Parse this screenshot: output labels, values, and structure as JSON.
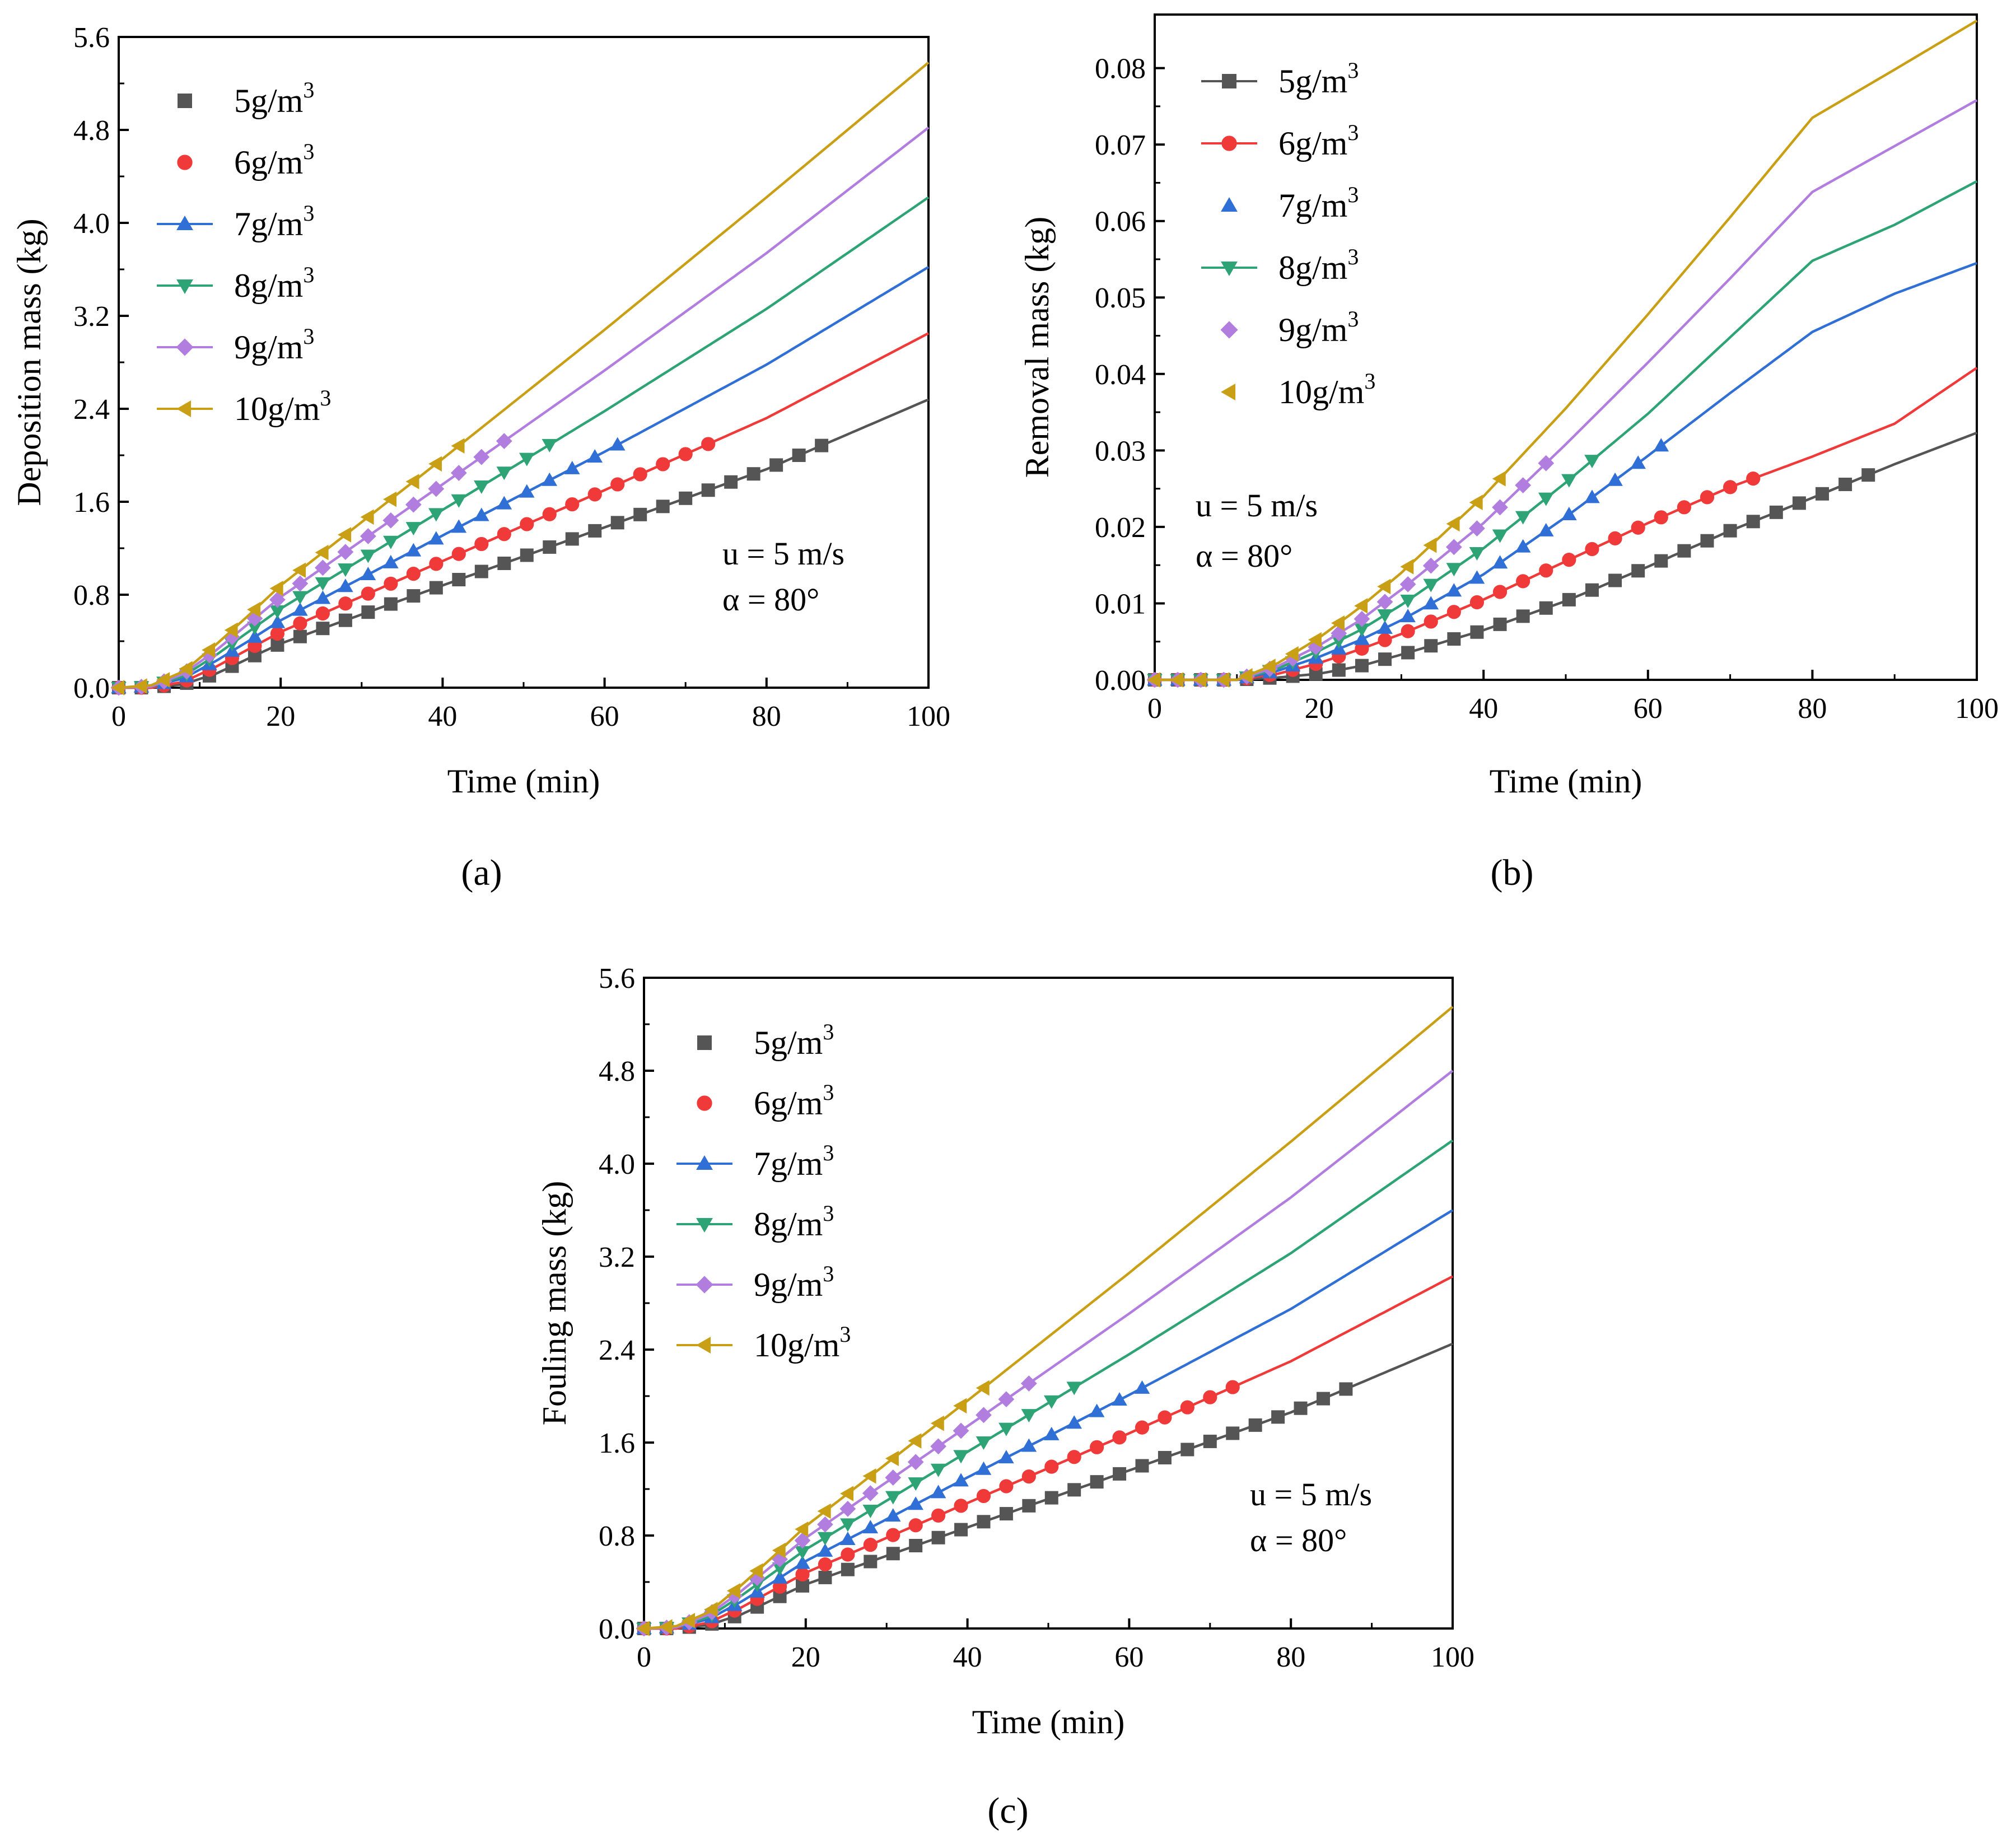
{
  "figure": {
    "annotation_velocity": "u = 5 m/s",
    "annotation_angle": "α = 80°"
  },
  "colors": [
    "#555555",
    "#f03a3a",
    "#2f6fd6",
    "#2ea476",
    "#b17ee0",
    "#c9a015"
  ],
  "markers": [
    "square",
    "circle",
    "triangle-up",
    "triangle-down",
    "diamond",
    "triangle-left"
  ],
  "chart_data": [
    {
      "id": "a",
      "caption": "(a)",
      "type": "line",
      "xlabel": "Time (min)",
      "ylabel": "Deposition mass (kg)",
      "xlim": [
        0,
        100
      ],
      "ylim": [
        0,
        5.6
      ],
      "xticks": [
        0,
        20,
        40,
        60,
        80,
        100
      ],
      "xtick_labels": [
        "0",
        "20",
        "40",
        "60",
        "80",
        "100"
      ],
      "yticks": [
        0,
        0.8,
        1.6,
        2.4,
        3.2,
        4.0,
        4.8,
        5.6
      ],
      "ytick_labels": [
        "0.0",
        "0.8",
        "1.6",
        "2.4",
        "3.2",
        "4.0",
        "4.8",
        "5.6"
      ],
      "legend_placement": "top-left",
      "series": [
        {
          "name": "5g/m",
          "sup": "3",
          "line_points": [
            [
              0,
              0
            ],
            [
              4,
              0
            ],
            [
              8,
              0.03
            ],
            [
              12,
              0.12
            ],
            [
              16,
              0.25
            ],
            [
              20,
              0.38
            ],
            [
              40,
              0.88
            ],
            [
              60,
              1.38
            ],
            [
              80,
              1.88
            ],
            [
              100,
              2.48
            ]
          ],
          "marker_x_end": 87,
          "legend_line": false
        },
        {
          "name": "6g/m",
          "sup": "3",
          "line_points": [
            [
              0,
              0
            ],
            [
              4,
              0
            ],
            [
              8,
              0.05
            ],
            [
              12,
              0.18
            ],
            [
              16,
              0.33
            ],
            [
              20,
              0.48
            ],
            [
              40,
              1.09
            ],
            [
              60,
              1.7
            ],
            [
              80,
              2.32
            ],
            [
              100,
              3.05
            ]
          ],
          "marker_x_end": 73,
          "legend_line": false
        },
        {
          "name": "7g/m",
          "sup": "3",
          "line_points": [
            [
              0,
              0
            ],
            [
              4,
              0.01
            ],
            [
              8,
              0.08
            ],
            [
              12,
              0.23
            ],
            [
              16,
              0.4
            ],
            [
              20,
              0.58
            ],
            [
              40,
              1.31
            ],
            [
              60,
              2.03
            ],
            [
              80,
              2.78
            ],
            [
              100,
              3.62
            ]
          ],
          "marker_x_end": 62,
          "legend_line": true
        },
        {
          "name": "8g/m",
          "sup": "3",
          "line_points": [
            [
              0,
              0
            ],
            [
              4,
              0.01
            ],
            [
              8,
              0.1
            ],
            [
              12,
              0.28
            ],
            [
              16,
              0.48
            ],
            [
              20,
              0.68
            ],
            [
              40,
              1.53
            ],
            [
              60,
              2.38
            ],
            [
              80,
              3.26
            ],
            [
              100,
              4.22
            ]
          ],
          "marker_x_end": 54,
          "legend_line": true
        },
        {
          "name": "9g/m",
          "sup": "3",
          "line_points": [
            [
              0,
              0
            ],
            [
              4,
              0.01
            ],
            [
              8,
              0.12
            ],
            [
              12,
              0.32
            ],
            [
              16,
              0.55
            ],
            [
              20,
              0.78
            ],
            [
              40,
              1.75
            ],
            [
              60,
              2.73
            ],
            [
              80,
              3.74
            ],
            [
              100,
              4.82
            ]
          ],
          "marker_x_end": 48,
          "legend_line": true
        },
        {
          "name": "10g/m",
          "sup": "3",
          "line_points": [
            [
              0,
              0
            ],
            [
              4,
              0.02
            ],
            [
              8,
              0.14
            ],
            [
              12,
              0.37
            ],
            [
              16,
              0.62
            ],
            [
              20,
              0.88
            ],
            [
              40,
              1.97
            ],
            [
              60,
              3.08
            ],
            [
              80,
              4.22
            ],
            [
              100,
              5.38
            ]
          ],
          "marker_x_end": 43,
          "legend_line": true
        }
      ]
    },
    {
      "id": "b",
      "caption": "(b)",
      "type": "line",
      "xlabel": "Time (min)",
      "ylabel": "Removal mass (kg)",
      "xlim": [
        0,
        100
      ],
      "ylim": [
        0,
        0.087
      ],
      "xticks": [
        0,
        20,
        40,
        60,
        80,
        100
      ],
      "xtick_labels": [
        "0",
        "20",
        "40",
        "60",
        "80",
        "100"
      ],
      "yticks": [
        0,
        0.01,
        0.02,
        0.03,
        0.04,
        0.05,
        0.06,
        0.07,
        0.08
      ],
      "ytick_labels": [
        "0.00",
        "0.01",
        "0.02",
        "0.03",
        "0.04",
        "0.05",
        "0.06",
        "0.07",
        "0.08"
      ],
      "legend_placement": "top-left",
      "series": [
        {
          "name": "5g/m",
          "sup": "3",
          "line_points": [
            [
              0,
              0
            ],
            [
              10,
              0
            ],
            [
              15,
              0.0003
            ],
            [
              20,
              0.0008
            ],
            [
              25,
              0.0018
            ],
            [
              30,
              0.0033
            ],
            [
              40,
              0.0065
            ],
            [
              50,
              0.0103
            ],
            [
              60,
              0.0148
            ],
            [
              70,
              0.0195
            ],
            [
              80,
              0.0238
            ],
            [
              90,
              0.0282
            ],
            [
              100,
              0.0323
            ]
          ],
          "marker_x_end": 87,
          "legend_line": true
        },
        {
          "name": "6g/m",
          "sup": "3",
          "line_points": [
            [
              0,
              0
            ],
            [
              10,
              0
            ],
            [
              15,
              0.0008
            ],
            [
              20,
              0.0022
            ],
            [
              25,
              0.004
            ],
            [
              30,
              0.006
            ],
            [
              40,
              0.0105
            ],
            [
              50,
              0.0155
            ],
            [
              60,
              0.0205
            ],
            [
              70,
              0.0252
            ],
            [
              80,
              0.0292
            ],
            [
              90,
              0.0335
            ],
            [
              100,
              0.0408
            ]
          ],
          "marker_x_end": 73,
          "legend_line": true
        },
        {
          "name": "7g/m",
          "sup": "3",
          "line_points": [
            [
              0,
              0
            ],
            [
              10,
              0
            ],
            [
              15,
              0.0012
            ],
            [
              20,
              0.003
            ],
            [
              25,
              0.0052
            ],
            [
              30,
              0.0078
            ],
            [
              40,
              0.0138
            ],
            [
              50,
              0.0213
            ],
            [
              60,
              0.0293
            ],
            [
              70,
              0.0375
            ],
            [
              80,
              0.0455
            ],
            [
              90,
              0.0505
            ],
            [
              100,
              0.0545
            ]
          ],
          "marker_x_end": 62,
          "legend_line": false
        },
        {
          "name": "8g/m",
          "sup": "3",
          "line_points": [
            [
              0,
              0
            ],
            [
              10,
              0
            ],
            [
              15,
              0.0015
            ],
            [
              20,
              0.0038
            ],
            [
              25,
              0.0065
            ],
            [
              30,
              0.0098
            ],
            [
              40,
              0.0172
            ],
            [
              50,
              0.0258
            ],
            [
              60,
              0.0348
            ],
            [
              70,
              0.0448
            ],
            [
              80,
              0.0548
            ],
            [
              90,
              0.0595
            ],
            [
              100,
              0.0652
            ]
          ],
          "marker_x_end": 54,
          "legend_line": true
        },
        {
          "name": "9g/m",
          "sup": "3",
          "line_points": [
            [
              0,
              0
            ],
            [
              10,
              0
            ],
            [
              15,
              0.0018
            ],
            [
              20,
              0.0045
            ],
            [
              25,
              0.0078
            ],
            [
              30,
              0.0118
            ],
            [
              40,
              0.0205
            ],
            [
              50,
              0.0308
            ],
            [
              60,
              0.0415
            ],
            [
              70,
              0.0525
            ],
            [
              80,
              0.0638
            ],
            [
              90,
              0.0698
            ],
            [
              100,
              0.0758
            ]
          ],
          "marker_x_end": 48,
          "legend_line": false
        },
        {
          "name": "10g/m",
          "sup": "3",
          "line_points": [
            [
              0,
              0
            ],
            [
              10,
              0
            ],
            [
              15,
              0.0022
            ],
            [
              20,
              0.0055
            ],
            [
              25,
              0.0095
            ],
            [
              30,
              0.014
            ],
            [
              40,
              0.024
            ],
            [
              50,
              0.0355
            ],
            [
              60,
              0.0478
            ],
            [
              70,
              0.0605
            ],
            [
              80,
              0.0735
            ],
            [
              90,
              0.0798
            ],
            [
              100,
              0.0862
            ]
          ],
          "marker_x_end": 43,
          "legend_line": false
        }
      ]
    },
    {
      "id": "c",
      "caption": "(c)",
      "type": "line",
      "xlabel": "Time (min)",
      "ylabel": "Fouling mass (kg)",
      "xlim": [
        0,
        100
      ],
      "ylim": [
        0,
        5.6
      ],
      "xticks": [
        0,
        20,
        40,
        60,
        80,
        100
      ],
      "xtick_labels": [
        "0",
        "20",
        "40",
        "60",
        "80",
        "100"
      ],
      "yticks": [
        0,
        0.8,
        1.6,
        2.4,
        3.2,
        4.0,
        4.8,
        5.6
      ],
      "ytick_labels": [
        "0.0",
        "0.8",
        "1.6",
        "2.4",
        "3.2",
        "4.0",
        "4.8",
        "5.6"
      ],
      "legend_placement": "top-left",
      "series": [
        {
          "name": "5g/m",
          "sup": "3",
          "line_points": [
            [
              0,
              0
            ],
            [
              4,
              0
            ],
            [
              8,
              0.03
            ],
            [
              12,
              0.12
            ],
            [
              16,
              0.25
            ],
            [
              20,
              0.38
            ],
            [
              40,
              0.87
            ],
            [
              60,
              1.36
            ],
            [
              80,
              1.86
            ],
            [
              100,
              2.45
            ]
          ],
          "marker_x_end": 87,
          "legend_line": false
        },
        {
          "name": "6g/m",
          "sup": "3",
          "line_points": [
            [
              0,
              0
            ],
            [
              4,
              0
            ],
            [
              8,
              0.05
            ],
            [
              12,
              0.18
            ],
            [
              16,
              0.33
            ],
            [
              20,
              0.48
            ],
            [
              40,
              1.08
            ],
            [
              60,
              1.68
            ],
            [
              80,
              2.3
            ],
            [
              100,
              3.03
            ]
          ],
          "marker_x_end": 73,
          "legend_line": false
        },
        {
          "name": "7g/m",
          "sup": "3",
          "line_points": [
            [
              0,
              0
            ],
            [
              4,
              0.01
            ],
            [
              8,
              0.08
            ],
            [
              12,
              0.23
            ],
            [
              16,
              0.4
            ],
            [
              20,
              0.58
            ],
            [
              40,
              1.3
            ],
            [
              60,
              2.01
            ],
            [
              80,
              2.75
            ],
            [
              100,
              3.6
            ]
          ],
          "marker_x_end": 62,
          "legend_line": true
        },
        {
          "name": "8g/m",
          "sup": "3",
          "line_points": [
            [
              0,
              0
            ],
            [
              4,
              0.01
            ],
            [
              8,
              0.1
            ],
            [
              12,
              0.28
            ],
            [
              16,
              0.48
            ],
            [
              20,
              0.68
            ],
            [
              40,
              1.52
            ],
            [
              60,
              2.36
            ],
            [
              80,
              3.23
            ],
            [
              100,
              4.2
            ]
          ],
          "marker_x_end": 54,
          "legend_line": true
        },
        {
          "name": "9g/m",
          "sup": "3",
          "line_points": [
            [
              0,
              0
            ],
            [
              4,
              0.01
            ],
            [
              8,
              0.12
            ],
            [
              12,
              0.32
            ],
            [
              16,
              0.55
            ],
            [
              20,
              0.78
            ],
            [
              40,
              1.74
            ],
            [
              60,
              2.71
            ],
            [
              80,
              3.71
            ],
            [
              100,
              4.8
            ]
          ],
          "marker_x_end": 48,
          "legend_line": true
        },
        {
          "name": "10g/m",
          "sup": "3",
          "line_points": [
            [
              0,
              0
            ],
            [
              4,
              0.02
            ],
            [
              8,
              0.14
            ],
            [
              12,
              0.37
            ],
            [
              16,
              0.62
            ],
            [
              20,
              0.88
            ],
            [
              40,
              1.96
            ],
            [
              60,
              3.06
            ],
            [
              80,
              4.19
            ],
            [
              100,
              5.35
            ]
          ],
          "marker_x_end": 43,
          "legend_line": true
        }
      ]
    }
  ]
}
